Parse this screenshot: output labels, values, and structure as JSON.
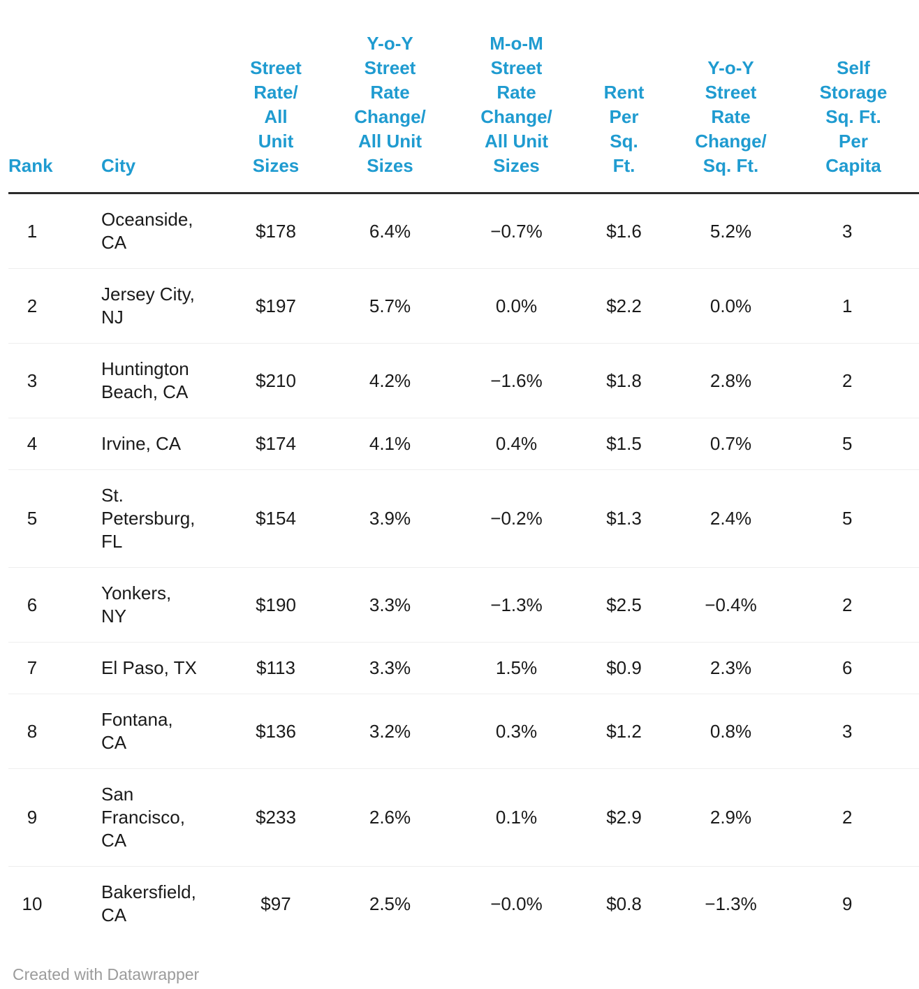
{
  "chart_data": {
    "type": "table",
    "columns": [
      {
        "id": "rank",
        "label": "Rank"
      },
      {
        "id": "city",
        "label": "City"
      },
      {
        "id": "street_rate",
        "label": "Street\nRate/\nAll\nUnit\nSizes"
      },
      {
        "id": "yoy_all_units",
        "label": "Y-o-Y\nStreet\nRate\nChange/\nAll Unit\nSizes"
      },
      {
        "id": "mom_all_units",
        "label": "M-o-M\nStreet\nRate\nChange/\nAll Unit\nSizes"
      },
      {
        "id": "rent_per_sqft",
        "label": "Rent\nPer\nSq.\nFt."
      },
      {
        "id": "yoy_sqft",
        "label": "Y-o-Y\nStreet\nRate\nChange/\nSq. Ft."
      },
      {
        "id": "sqft_per_capita",
        "label": "Self\nStorage\nSq. Ft.\nPer\nCapita",
        "clipped_at_right_edge": true
      }
    ],
    "rows": [
      {
        "rank": "1",
        "city": "Oceanside,\nCA",
        "street_rate": "$178",
        "yoy_all_units": "6.4%",
        "mom_all_units": "−0.7%",
        "rent_per_sqft": "$1.6",
        "yoy_sqft": "5.2%",
        "sqft_per_capita": "3"
      },
      {
        "rank": "2",
        "city": "Jersey City,\nNJ",
        "street_rate": "$197",
        "yoy_all_units": "5.7%",
        "mom_all_units": "0.0%",
        "rent_per_sqft": "$2.2",
        "yoy_sqft": "0.0%",
        "sqft_per_capita": "1"
      },
      {
        "rank": "3",
        "city": "Huntington\nBeach, CA",
        "street_rate": "$210",
        "yoy_all_units": "4.2%",
        "mom_all_units": "−1.6%",
        "rent_per_sqft": "$1.8",
        "yoy_sqft": "2.8%",
        "sqft_per_capita": "2"
      },
      {
        "rank": "4",
        "city": "Irvine, CA",
        "street_rate": "$174",
        "yoy_all_units": "4.1%",
        "mom_all_units": "0.4%",
        "rent_per_sqft": "$1.5",
        "yoy_sqft": "0.7%",
        "sqft_per_capita": "5"
      },
      {
        "rank": "5",
        "city": "St.\nPetersburg,\nFL",
        "street_rate": "$154",
        "yoy_all_units": "3.9%",
        "mom_all_units": "−0.2%",
        "rent_per_sqft": "$1.3",
        "yoy_sqft": "2.4%",
        "sqft_per_capita": "5"
      },
      {
        "rank": "6",
        "city": "Yonkers,\nNY",
        "street_rate": "$190",
        "yoy_all_units": "3.3%",
        "mom_all_units": "−1.3%",
        "rent_per_sqft": "$2.5",
        "yoy_sqft": "−0.4%",
        "sqft_per_capita": "2"
      },
      {
        "rank": "7",
        "city": "El Paso, TX",
        "street_rate": "$113",
        "yoy_all_units": "3.3%",
        "mom_all_units": "1.5%",
        "rent_per_sqft": "$0.9",
        "yoy_sqft": "2.3%",
        "sqft_per_capita": "6"
      },
      {
        "rank": "8",
        "city": "Fontana,\nCA",
        "street_rate": "$136",
        "yoy_all_units": "3.2%",
        "mom_all_units": "0.3%",
        "rent_per_sqft": "$1.2",
        "yoy_sqft": "0.8%",
        "sqft_per_capita": "3"
      },
      {
        "rank": "9",
        "city": "San\nFrancisco,\nCA",
        "street_rate": "$233",
        "yoy_all_units": "2.6%",
        "mom_all_units": "0.1%",
        "rent_per_sqft": "$2.9",
        "yoy_sqft": "2.9%",
        "sqft_per_capita": "2"
      },
      {
        "rank": "10",
        "city": "Bakersfield,\nCA",
        "street_rate": "$97",
        "yoy_all_units": "2.5%",
        "mom_all_units": "−0.0%",
        "rent_per_sqft": "$0.8",
        "yoy_sqft": "−1.3%",
        "sqft_per_capita": "9"
      }
    ]
  },
  "footer": {
    "credit": "Created with Datawrapper"
  },
  "colors": {
    "header_text": "#1f9bd0",
    "body_text": "#1a1a1a",
    "header_border": "#2b2b2b",
    "row_separator": "#eeeeee",
    "footer_text": "#9b9b9b",
    "background": "#ffffff"
  }
}
